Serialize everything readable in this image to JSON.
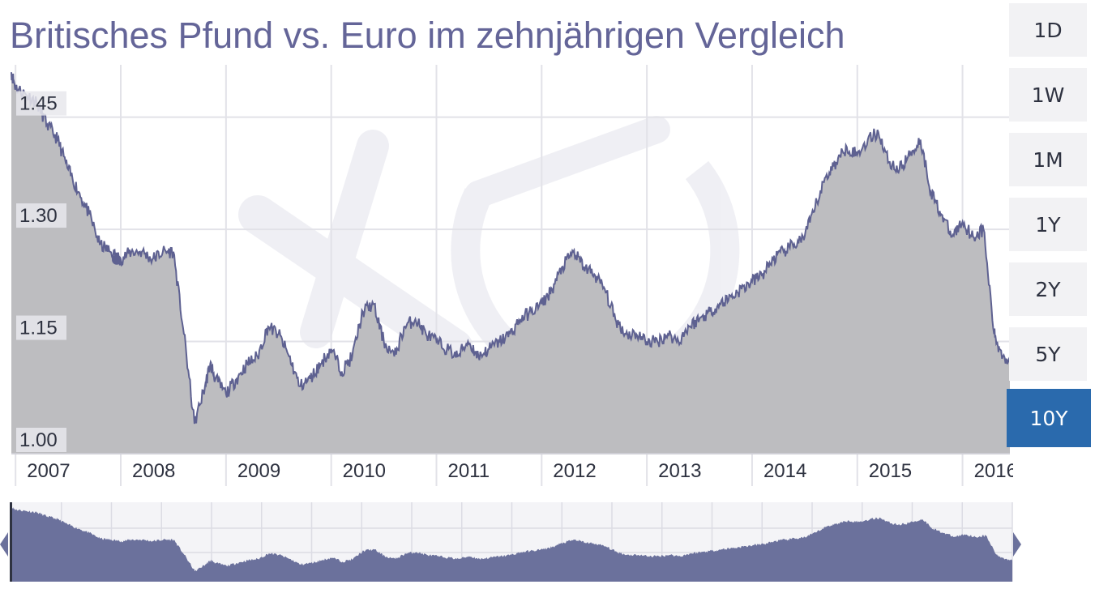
{
  "chart_data": {
    "type": "area",
    "title": "Britisches Pfund vs. Euro im zehnjährigen Vergleich",
    "xlabel": "",
    "ylabel": "",
    "x_ticks": [
      "2007",
      "2008",
      "2009",
      "2010",
      "2011",
      "2012",
      "2013",
      "2014",
      "2015",
      "2016"
    ],
    "x_range": [
      2006.96,
      2016.45
    ],
    "y_ticks": [
      "1.00",
      "1.15",
      "1.30",
      "1.45"
    ],
    "ylim": [
      1.0,
      1.52
    ],
    "grid": true,
    "series": [
      {
        "x": [
          2006.96,
          2007.0,
          2007.1,
          2007.2,
          2007.3,
          2007.4,
          2007.5,
          2007.6,
          2007.7,
          2007.8,
          2007.9,
          2008.0,
          2008.1,
          2008.2,
          2008.3,
          2008.4,
          2008.5,
          2008.6,
          2008.7,
          2008.8,
          2008.85,
          2008.9,
          2009.0,
          2009.1,
          2009.2,
          2009.3,
          2009.4,
          2009.5,
          2009.6,
          2009.7,
          2009.8,
          2009.9,
          2010.0,
          2010.1,
          2010.2,
          2010.3,
          2010.4,
          2010.5,
          2010.6,
          2010.7,
          2010.8,
          2010.9,
          2011.0,
          2011.1,
          2011.2,
          2011.3,
          2011.4,
          2011.5,
          2011.6,
          2011.7,
          2011.8,
          2011.9,
          2012.0,
          2012.1,
          2012.2,
          2012.3,
          2012.4,
          2012.5,
          2012.6,
          2012.7,
          2012.8,
          2012.9,
          2013.0,
          2013.1,
          2013.2,
          2013.3,
          2013.4,
          2013.5,
          2013.6,
          2013.7,
          2013.8,
          2013.9,
          2014.0,
          2014.1,
          2014.2,
          2014.3,
          2014.4,
          2014.5,
          2014.6,
          2014.7,
          2014.8,
          2014.9,
          2015.0,
          2015.1,
          2015.2,
          2015.3,
          2015.4,
          2015.5,
          2015.6,
          2015.7,
          2015.8,
          2015.9,
          2016.0,
          2016.1,
          2016.2,
          2016.3,
          2016.35,
          2016.45
        ],
        "values": [
          1.51,
          1.49,
          1.48,
          1.47,
          1.44,
          1.42,
          1.38,
          1.35,
          1.32,
          1.28,
          1.27,
          1.26,
          1.27,
          1.27,
          1.26,
          1.27,
          1.27,
          1.16,
          1.04,
          1.09,
          1.12,
          1.1,
          1.08,
          1.1,
          1.12,
          1.13,
          1.17,
          1.16,
          1.13,
          1.09,
          1.1,
          1.12,
          1.14,
          1.11,
          1.13,
          1.19,
          1.2,
          1.15,
          1.13,
          1.17,
          1.18,
          1.16,
          1.15,
          1.14,
          1.13,
          1.15,
          1.13,
          1.14,
          1.15,
          1.16,
          1.18,
          1.19,
          1.2,
          1.22,
          1.25,
          1.27,
          1.25,
          1.24,
          1.22,
          1.18,
          1.16,
          1.16,
          1.15,
          1.15,
          1.16,
          1.15,
          1.17,
          1.18,
          1.19,
          1.2,
          1.21,
          1.22,
          1.23,
          1.24,
          1.26,
          1.27,
          1.28,
          1.29,
          1.33,
          1.37,
          1.39,
          1.41,
          1.4,
          1.42,
          1.43,
          1.39,
          1.38,
          1.4,
          1.42,
          1.35,
          1.32,
          1.29,
          1.31,
          1.29,
          1.3,
          1.16,
          1.14,
          1.12
        ]
      }
    ]
  },
  "navigator": {
    "range_start": 2006.96,
    "range_end": 2016.45
  },
  "range_selector": {
    "buttons": [
      "1D",
      "1W",
      "1M",
      "1Y",
      "2Y",
      "5Y",
      "10Y"
    ],
    "active": "10Y"
  },
  "colors": {
    "title": "#646598",
    "area_fill": "#bdbdc0",
    "line": "#5e6191",
    "grid": "#e2e2e8",
    "navigator_fill": "#6b719c",
    "active_button": "#2a6aad",
    "button_bg": "#f2f2f4",
    "tick_label_bg": "#e8e8ec"
  }
}
